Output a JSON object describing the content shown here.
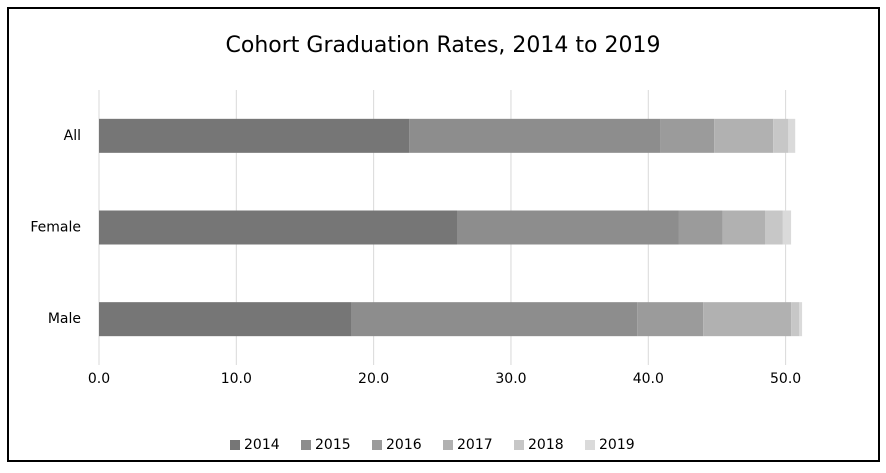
{
  "chart_data": {
    "type": "stacked-bar-horizontal",
    "title": "Cohort Graduation Rates, 2014 to 2019",
    "categories": [
      "All",
      "Female",
      "Male"
    ],
    "series": [
      {
        "name": "2014",
        "color": "#767676",
        "values": [
          22.6,
          26.1,
          18.4
        ]
      },
      {
        "name": "2015",
        "color": "#8d8d8d",
        "values": [
          18.3,
          16.1,
          20.8
        ]
      },
      {
        "name": "2016",
        "color": "#9b9b9b",
        "values": [
          3.9,
          3.2,
          4.8
        ]
      },
      {
        "name": "2017",
        "color": "#b1b1b1",
        "values": [
          4.3,
          3.1,
          6.4
        ]
      },
      {
        "name": "2018",
        "color": "#c7c7c7",
        "values": [
          1.1,
          1.3,
          0.6
        ]
      },
      {
        "name": "2019",
        "color": "#dadada",
        "values": [
          0.5,
          0.6,
          0.2
        ]
      }
    ],
    "xlim": [
      0,
      56
    ],
    "xticks": [
      {
        "value": 0,
        "label": "0.0"
      },
      {
        "value": 10,
        "label": "10.0"
      },
      {
        "value": 20,
        "label": "20.0"
      },
      {
        "value": 30,
        "label": "30.0"
      },
      {
        "value": 40,
        "label": "40.0"
      },
      {
        "value": 50,
        "label": "50.0"
      }
    ],
    "grid": true,
    "legend": "bottom"
  }
}
